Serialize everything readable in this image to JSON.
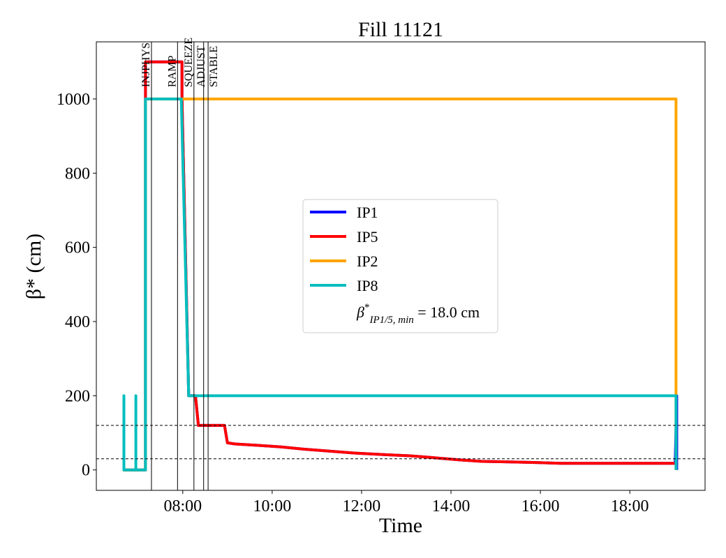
{
  "chart_data": {
    "type": "line",
    "title": "Fill 11121",
    "xlabel": "Time",
    "ylabel": "β* (cm)",
    "xlim": [
      "06:04",
      "19:41"
    ],
    "ylim": [
      -55,
      1154
    ],
    "x_ticks": [
      "08:00",
      "10:00",
      "12:00",
      "14:00",
      "16:00",
      "18:00"
    ],
    "y_ticks": [
      0,
      200,
      400,
      600,
      800,
      1000
    ],
    "grid": false,
    "legend_placement": "center",
    "series": [
      {
        "name": "IP1",
        "color": "#0000ff",
        "step": true,
        "points": [
          [
            "06:40",
            0
          ],
          [
            "07:10",
            0
          ],
          [
            "07:10",
            1100
          ],
          [
            "07:59",
            1100
          ],
          [
            "07:59",
            1000
          ],
          [
            "08:08",
            200
          ],
          [
            "08:17",
            200
          ],
          [
            "08:21",
            120
          ],
          [
            "08:56",
            120
          ],
          [
            "09:00",
            73
          ],
          [
            "09:10",
            70
          ],
          [
            "09:43",
            66
          ],
          [
            "10:12",
            62
          ],
          [
            "10:43",
            56
          ],
          [
            "11:15",
            51
          ],
          [
            "11:54",
            45
          ],
          [
            "12:32",
            41
          ],
          [
            "13:05",
            38
          ],
          [
            "13:32",
            34
          ],
          [
            "13:54",
            30
          ],
          [
            "14:12",
            27
          ],
          [
            "14:42",
            23
          ],
          [
            "15:08",
            22
          ],
          [
            "15:54",
            20
          ],
          [
            "16:27",
            18
          ],
          [
            "19:01",
            18
          ],
          [
            "19:03",
            200
          ],
          [
            "19:03",
            0
          ]
        ]
      },
      {
        "name": "IP5",
        "color": "#ff0000",
        "step": true,
        "points": [
          [
            "06:40",
            0
          ],
          [
            "07:10",
            0
          ],
          [
            "07:10",
            1100
          ],
          [
            "07:59",
            1100
          ],
          [
            "07:59",
            1000
          ],
          [
            "08:08",
            200
          ],
          [
            "08:17",
            200
          ],
          [
            "08:21",
            120
          ],
          [
            "08:56",
            120
          ],
          [
            "09:00",
            73
          ],
          [
            "09:10",
            70
          ],
          [
            "09:43",
            66
          ],
          [
            "10:12",
            62
          ],
          [
            "10:43",
            56
          ],
          [
            "11:15",
            51
          ],
          [
            "11:54",
            45
          ],
          [
            "12:32",
            41
          ],
          [
            "13:05",
            38
          ],
          [
            "13:32",
            34
          ],
          [
            "13:54",
            30
          ],
          [
            "14:12",
            27
          ],
          [
            "14:42",
            23
          ],
          [
            "15:08",
            22
          ],
          [
            "15:54",
            20
          ],
          [
            "16:27",
            18
          ],
          [
            "19:00",
            18
          ]
        ]
      },
      {
        "name": "IP2",
        "color": "#ffa500",
        "step": true,
        "points": [
          [
            "06:40",
            0
          ],
          [
            "07:10",
            0
          ],
          [
            "07:10",
            1000
          ],
          [
            "19:02",
            1000
          ],
          [
            "19:02",
            200
          ],
          [
            "19:02",
            0
          ]
        ]
      },
      {
        "name": "IP8",
        "color": "#00bebe",
        "step": true,
        "points": [
          [
            "06:40",
            0
          ],
          [
            "06:41",
            0
          ],
          [
            "06:41",
            200
          ],
          [
            "06:41",
            0
          ],
          [
            "06:57",
            0
          ],
          [
            "06:57",
            200
          ],
          [
            "06:57",
            0
          ],
          [
            "07:10",
            0
          ],
          [
            "07:10",
            1000
          ],
          [
            "07:58",
            1000
          ],
          [
            "08:08",
            200
          ],
          [
            "19:02",
            200
          ],
          [
            "19:02",
            0
          ]
        ]
      }
    ],
    "legend_extra": {
      "text_main": "β",
      "sup": "*",
      "sub": "IP1/5, min",
      "text_value": " = 18.0 cm"
    },
    "reference_lines": [
      {
        "type": "horizontal",
        "value": 120,
        "style": "dashed"
      },
      {
        "type": "horizontal",
        "value": 30,
        "style": "dashed"
      }
    ],
    "phase_markers": [
      {
        "label": "INJPHYS",
        "time": "07:18"
      },
      {
        "label": "RAMP",
        "time": "07:53"
      },
      {
        "label": "SQUEEZE",
        "time": "08:15"
      },
      {
        "label": "ADJUST",
        "time": "08:28"
      },
      {
        "label": "STABLE",
        "time": "08:34"
      }
    ]
  }
}
